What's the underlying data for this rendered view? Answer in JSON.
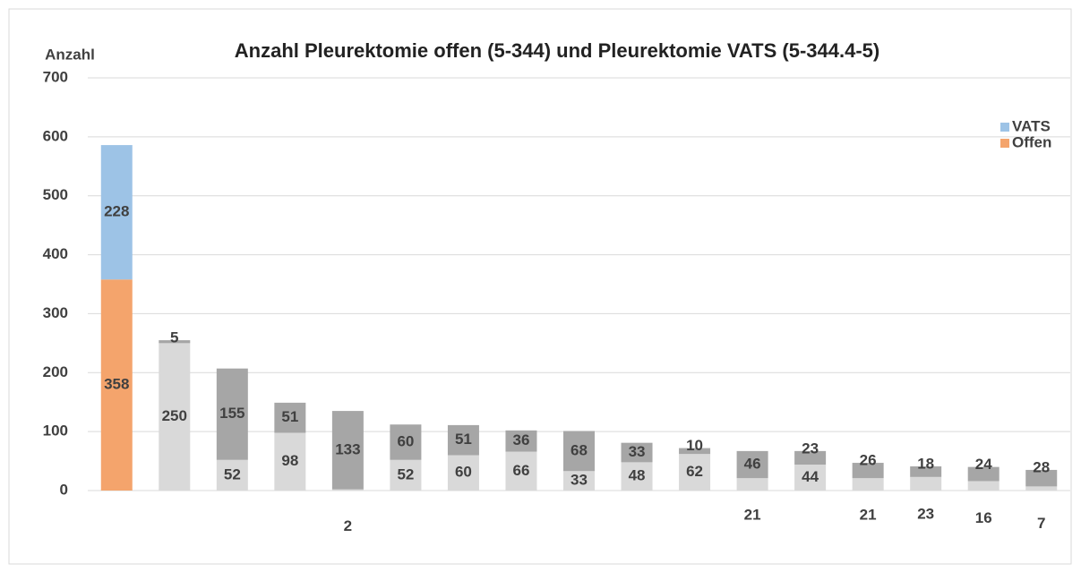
{
  "chart_data": {
    "type": "stacked_bar",
    "title": "Anzahl Pleurektomie offen (5-344) und Pleurektomie VATS (5-344.4-5)",
    "y_label": "Anzahl",
    "categories": [
      null,
      null,
      null,
      null,
      null,
      null,
      null,
      null,
      null,
      null,
      null,
      null,
      null,
      null,
      null,
      null,
      null
    ],
    "series": [
      {
        "name": "Offen",
        "color": "#f4a46c",
        "point_colors": [
          "#f4a46c",
          "#d9d9d9",
          "#d9d9d9",
          "#d9d9d9",
          "#d9d9d9",
          "#d9d9d9",
          "#d9d9d9",
          "#d9d9d9",
          "#d9d9d9",
          "#d9d9d9",
          "#d9d9d9",
          "#d9d9d9",
          "#d9d9d9",
          "#d9d9d9",
          "#d9d9d9",
          "#d9d9d9",
          "#d9d9d9"
        ],
        "values": [
          358,
          250,
          52,
          98,
          2,
          52,
          60,
          66,
          33,
          48,
          62,
          21,
          44,
          21,
          23,
          16,
          7
        ]
      },
      {
        "name": "VATS",
        "color": "#9dc3e6",
        "point_colors": [
          "#9dc3e6",
          "#a6a6a6",
          "#a6a6a6",
          "#a6a6a6",
          "#a6a6a6",
          "#a6a6a6",
          "#a6a6a6",
          "#a6a6a6",
          "#a6a6a6",
          "#a6a6a6",
          "#a6a6a6",
          "#a6a6a6",
          "#a6a6a6",
          "#a6a6a6",
          "#a6a6a6",
          "#a6a6a6",
          "#a6a6a6"
        ],
        "values": [
          228,
          5,
          155,
          51,
          133,
          60,
          51,
          36,
          68,
          33,
          10,
          46,
          23,
          26,
          18,
          24,
          28
        ]
      }
    ],
    "ylim": [
      0,
      700
    ],
    "yticks": [
      0,
      100,
      200,
      300,
      400,
      500,
      600,
      700
    ],
    "grid": true,
    "legend": "right"
  }
}
